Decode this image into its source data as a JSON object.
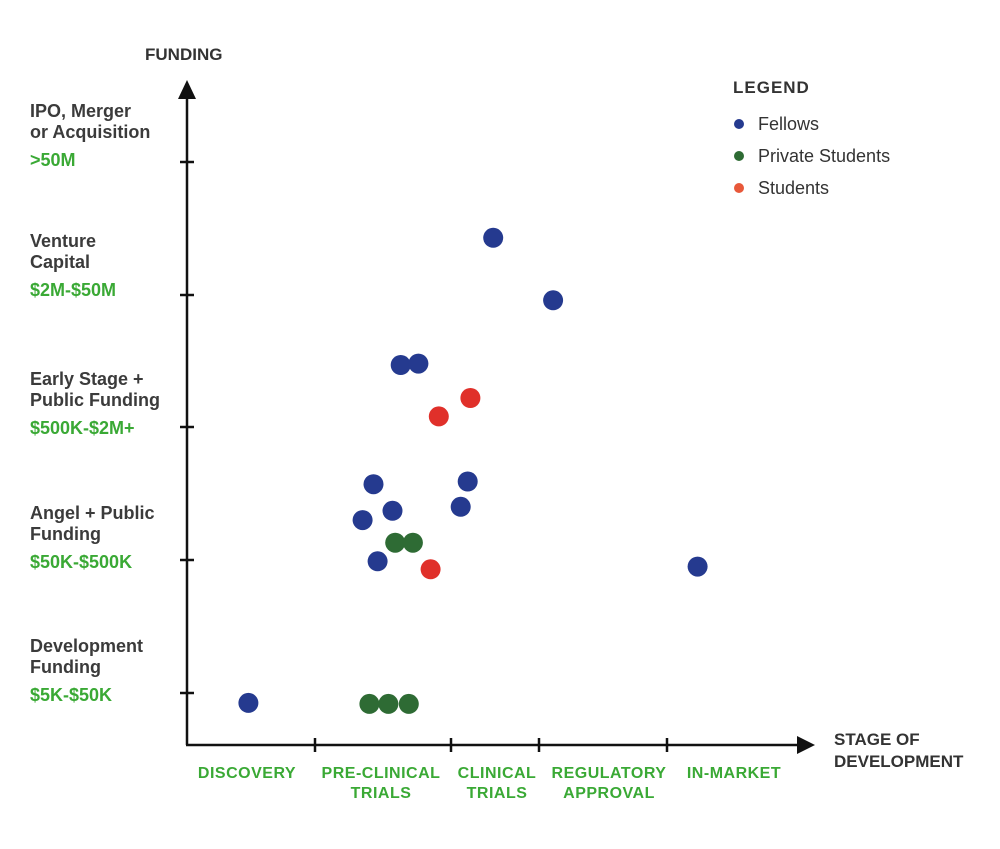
{
  "chart_data": {
    "type": "scatter",
    "title": "",
    "ylabel": "FUNDING",
    "xlabel_lines": [
      "STAGE OF",
      "DEVELOPMENT"
    ],
    "xlim": [
      0,
      5
    ],
    "ylim": [
      0,
      5
    ],
    "grid": false,
    "legend_placement": "top-right",
    "legend_title": "LEGEND",
    "colors": {
      "text_green": "#3aa935",
      "axis": "#111111"
    },
    "x_categories": [
      {
        "lines": [
          "DISCOVERY"
        ]
      },
      {
        "lines": [
          "PRE-CLINICAL",
          "TRIALS"
        ]
      },
      {
        "lines": [
          "CLINICAL",
          "TRIALS"
        ]
      },
      {
        "lines": [
          "REGULATORY",
          "APPROVAL"
        ]
      },
      {
        "lines": [
          "IN-MARKET"
        ]
      }
    ],
    "y_categories": [
      {
        "lines": [
          "Development",
          "Funding"
        ],
        "range": "$5K-$50K"
      },
      {
        "lines": [
          "Angel + Public",
          "Funding"
        ],
        "range": "$50K-$500K"
      },
      {
        "lines": [
          "Early Stage +",
          "Public Funding"
        ],
        "range": "$500K-$2M+"
      },
      {
        "lines": [
          "Venture",
          "Capital"
        ],
        "range": "$2M-$50M"
      },
      {
        "lines": [
          "IPO, Merger",
          "or Acquisition"
        ],
        "range": ">50M"
      }
    ],
    "series": [
      {
        "name": "Fellows",
        "color": "#253a8f",
        "legend_color": "#253a8f",
        "points": [
          [
            2.48,
            4.43
          ],
          [
            3.11,
            3.96
          ],
          [
            1.63,
            3.47
          ],
          [
            1.76,
            3.48
          ],
          [
            1.43,
            2.57
          ],
          [
            2.19,
            2.59
          ],
          [
            1.57,
            2.37
          ],
          [
            2.11,
            2.4
          ],
          [
            1.35,
            2.3
          ],
          [
            1.46,
            1.99
          ],
          [
            4.23,
            1.95
          ],
          [
            0.48,
            0.81
          ]
        ]
      },
      {
        "name": "Private Students",
        "color": "#2e6b34",
        "legend_color": "#2e6b34",
        "points": [
          [
            1.59,
            2.13
          ],
          [
            1.72,
            2.13
          ],
          [
            1.4,
            0.79
          ],
          [
            1.54,
            0.79
          ],
          [
            1.69,
            0.79
          ]
        ]
      },
      {
        "name": "Students",
        "color": "#e0302a",
        "legend_color": "#e8583a",
        "points": [
          [
            2.22,
            3.22
          ],
          [
            1.91,
            3.08
          ],
          [
            1.85,
            1.93
          ]
        ]
      }
    ]
  }
}
